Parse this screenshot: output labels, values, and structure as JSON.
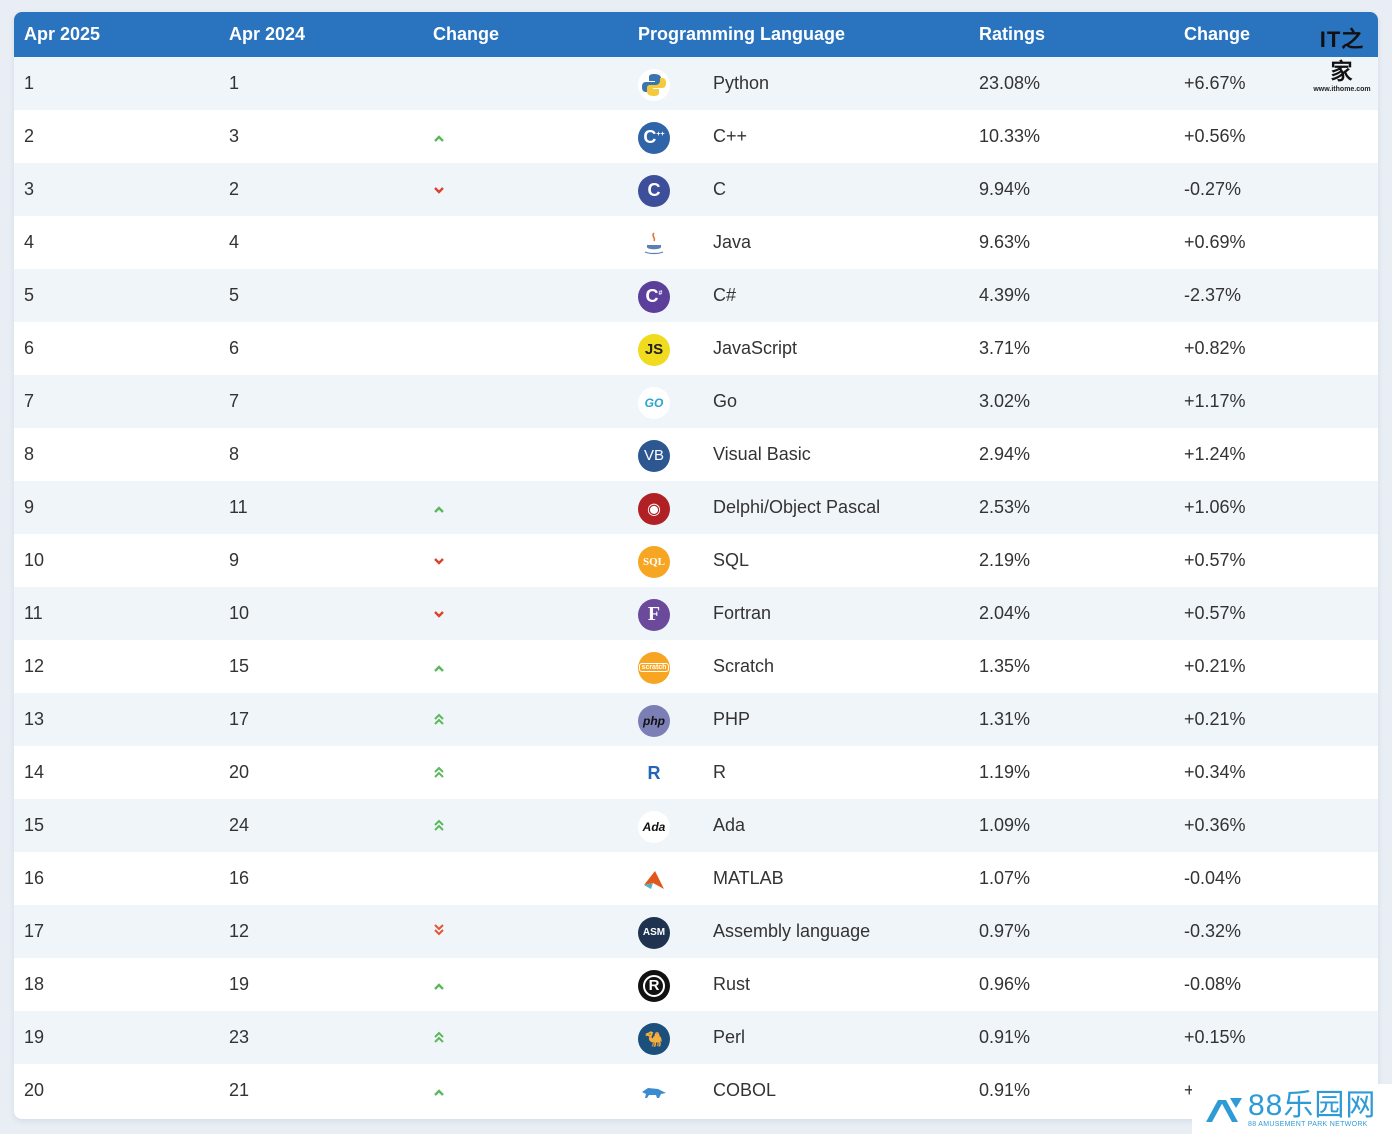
{
  "table": {
    "headers": {
      "current_rank": "Apr 2025",
      "previous_rank": "Apr 2024",
      "change": "Change",
      "language": "Programming Language",
      "ratings": "Ratings",
      "ratings_change": "Change"
    },
    "rows": [
      {
        "rank": "1",
        "prev": "1",
        "trend": "",
        "icon": "python-logo-icon",
        "language": "Python",
        "rating": "23.08%",
        "change": "+6.67%"
      },
      {
        "rank": "2",
        "prev": "3",
        "trend": "up",
        "icon": "cpp-logo-icon",
        "language": "C++",
        "rating": "10.33%",
        "change": "+0.56%"
      },
      {
        "rank": "3",
        "prev": "2",
        "trend": "down",
        "icon": "c-logo-icon",
        "language": "C",
        "rating": "9.94%",
        "change": "-0.27%"
      },
      {
        "rank": "4",
        "prev": "4",
        "trend": "",
        "icon": "java-logo-icon",
        "language": "Java",
        "rating": "9.63%",
        "change": "+0.69%"
      },
      {
        "rank": "5",
        "prev": "5",
        "trend": "",
        "icon": "csharp-logo-icon",
        "language": "C#",
        "rating": "4.39%",
        "change": "-2.37%"
      },
      {
        "rank": "6",
        "prev": "6",
        "trend": "",
        "icon": "javascript-logo-icon",
        "language": "JavaScript",
        "rating": "3.71%",
        "change": "+0.82%"
      },
      {
        "rank": "7",
        "prev": "7",
        "trend": "",
        "icon": "go-logo-icon",
        "language": "Go",
        "rating": "3.02%",
        "change": "+1.17%"
      },
      {
        "rank": "8",
        "prev": "8",
        "trend": "",
        "icon": "visual-basic-logo-icon",
        "language": "Visual Basic",
        "rating": "2.94%",
        "change": "+1.24%"
      },
      {
        "rank": "9",
        "prev": "11",
        "trend": "up",
        "icon": "delphi-logo-icon",
        "language": "Delphi/Object Pascal",
        "rating": "2.53%",
        "change": "+1.06%"
      },
      {
        "rank": "10",
        "prev": "9",
        "trend": "down",
        "icon": "sql-logo-icon",
        "language": "SQL",
        "rating": "2.19%",
        "change": "+0.57%"
      },
      {
        "rank": "11",
        "prev": "10",
        "trend": "down",
        "icon": "fortran-logo-icon",
        "language": "Fortran",
        "rating": "2.04%",
        "change": "+0.57%"
      },
      {
        "rank": "12",
        "prev": "15",
        "trend": "up",
        "icon": "scratch-logo-icon",
        "language": "Scratch",
        "rating": "1.35%",
        "change": "+0.21%"
      },
      {
        "rank": "13",
        "prev": "17",
        "trend": "up2",
        "icon": "php-logo-icon",
        "language": "PHP",
        "rating": "1.31%",
        "change": "+0.21%"
      },
      {
        "rank": "14",
        "prev": "20",
        "trend": "up2",
        "icon": "r-logo-icon",
        "language": "R",
        "rating": "1.19%",
        "change": "+0.34%"
      },
      {
        "rank": "15",
        "prev": "24",
        "trend": "up2",
        "icon": "ada-logo-icon",
        "language": "Ada",
        "rating": "1.09%",
        "change": "+0.36%"
      },
      {
        "rank": "16",
        "prev": "16",
        "trend": "",
        "icon": "matlab-logo-icon",
        "language": "MATLAB",
        "rating": "1.07%",
        "change": "-0.04%"
      },
      {
        "rank": "17",
        "prev": "12",
        "trend": "down2",
        "icon": "assembly-logo-icon",
        "language": "Assembly language",
        "rating": "0.97%",
        "change": "-0.32%"
      },
      {
        "rank": "18",
        "prev": "19",
        "trend": "up",
        "icon": "rust-logo-icon",
        "language": "Rust",
        "rating": "0.96%",
        "change": "-0.08%"
      },
      {
        "rank": "19",
        "prev": "23",
        "trend": "up2",
        "icon": "perl-logo-icon",
        "language": "Perl",
        "rating": "0.91%",
        "change": "+0.15%"
      },
      {
        "rank": "20",
        "prev": "21",
        "trend": "up",
        "icon": "cobol-logo-icon",
        "language": "COBOL",
        "rating": "0.91%",
        "change": "+"
      }
    ]
  },
  "icons": {
    "trend_up": "^",
    "trend_up2": "»",
    "trend_down": "v",
    "trend_down2": "«"
  },
  "colors": {
    "header_bg": "#2a73bf",
    "row_alt_bg": "#f0f5fa",
    "trend_up": "#5cb85c",
    "trend_down": "#d9442b"
  },
  "watermarks": {
    "ithome_logo": "IT之家",
    "ithome_url": "www.ithome.com",
    "site88_name": "88乐园网",
    "site88_tagline": "88 AMUSEMENT PARK NETWORK"
  }
}
